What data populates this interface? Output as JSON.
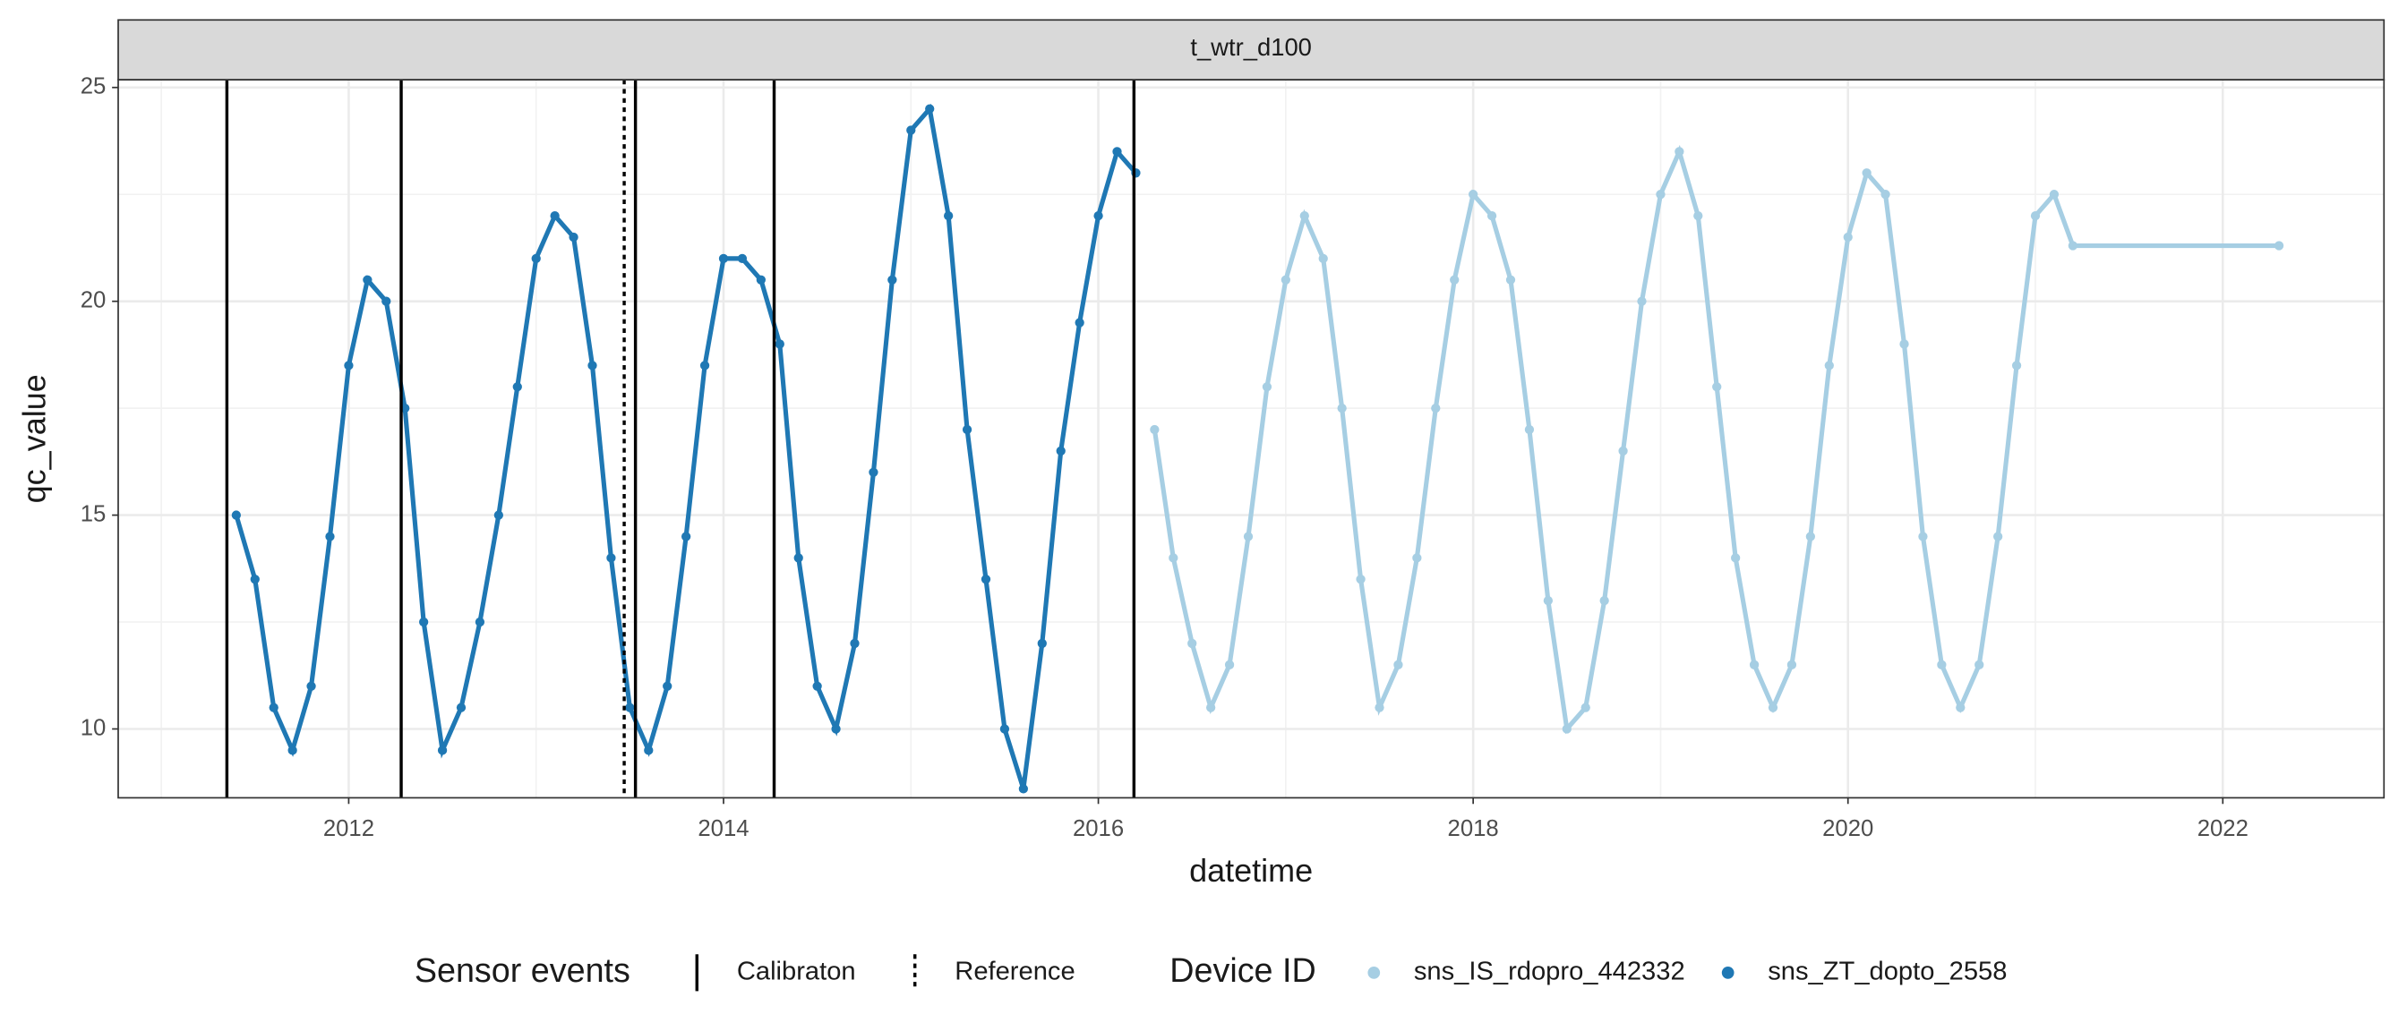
{
  "chart_data": {
    "type": "scatter",
    "strip_title": "t_wtr_d100",
    "x_label": "datetime",
    "y_label": "qc_value",
    "xlim": [
      2010.77,
      2022.86
    ],
    "ylim": [
      8.39,
      25.18
    ],
    "xticks": [
      2012,
      2014,
      2016,
      2018,
      2020,
      2022
    ],
    "yticks": [
      10,
      15,
      20,
      25
    ],
    "grid": true,
    "minor_grid": true,
    "legend_position": "bottom",
    "series": [
      {
        "name": "sns_IS_rdopro_442332",
        "color": "#a6cee3",
        "x": [
          2016.3,
          2016.4,
          2016.5,
          2016.6,
          2016.7,
          2016.8,
          2016.9,
          2017.0,
          2017.1,
          2017.2,
          2017.3,
          2017.4,
          2017.5,
          2017.6,
          2017.7,
          2017.8,
          2017.9,
          2018.0,
          2018.1,
          2018.2,
          2018.3,
          2018.4,
          2018.5,
          2018.6,
          2018.7,
          2018.8,
          2018.9,
          2019.0,
          2019.1,
          2019.2,
          2019.3,
          2019.4,
          2019.5,
          2019.6,
          2019.7,
          2019.8,
          2019.9,
          2020.0,
          2020.1,
          2020.2,
          2020.3,
          2020.4,
          2020.5,
          2020.6,
          2020.7,
          2020.8,
          2020.9,
          2021.0,
          2021.1,
          2021.2,
          2022.3
        ],
        "values": [
          17.0,
          14.0,
          12.0,
          10.5,
          11.5,
          14.5,
          18.0,
          20.5,
          22.0,
          21.0,
          17.5,
          13.5,
          10.5,
          11.5,
          14.0,
          17.5,
          20.5,
          22.5,
          22.0,
          20.5,
          17.0,
          13.0,
          10.0,
          10.5,
          13.0,
          16.5,
          20.0,
          22.5,
          23.5,
          22.0,
          18.0,
          14.0,
          11.5,
          10.5,
          11.5,
          14.5,
          18.5,
          21.5,
          23.0,
          22.5,
          19.0,
          14.5,
          11.5,
          10.5,
          11.5,
          14.5,
          18.5,
          22.0,
          22.5,
          21.3,
          21.3
        ]
      },
      {
        "name": "sns_ZT_dopto_2558",
        "color": "#1f78b4",
        "x": [
          2011.4,
          2011.5,
          2011.6,
          2011.7,
          2011.8,
          2011.9,
          2012.0,
          2012.1,
          2012.2,
          2012.3,
          2012.4,
          2012.5,
          2012.6,
          2012.7,
          2012.8,
          2012.9,
          2013.0,
          2013.1,
          2013.2,
          2013.3,
          2013.4,
          2013.5,
          2013.6,
          2013.7,
          2013.8,
          2013.9,
          2014.0,
          2014.1,
          2014.2,
          2014.3,
          2014.4,
          2014.5,
          2014.6,
          2014.7,
          2014.8,
          2014.9,
          2015.0,
          2015.1,
          2015.2,
          2015.3,
          2015.4,
          2015.5,
          2015.6,
          2015.7,
          2015.8,
          2015.9,
          2016.0,
          2016.1,
          2016.2
        ],
        "values": [
          15.0,
          13.5,
          10.5,
          9.5,
          11.0,
          14.5,
          18.5,
          20.5,
          20.0,
          17.5,
          12.5,
          9.5,
          10.5,
          12.5,
          15.0,
          18.0,
          21.0,
          22.0,
          21.5,
          18.5,
          14.0,
          10.5,
          9.5,
          11.0,
          14.5,
          18.5,
          21.0,
          21.0,
          20.5,
          19.0,
          14.0,
          11.0,
          10.0,
          12.0,
          16.0,
          20.5,
          24.0,
          24.5,
          22.0,
          17.0,
          13.5,
          10.0,
          8.6,
          12.0,
          16.5,
          19.5,
          22.0,
          23.5,
          23.0
        ]
      }
    ],
    "sensor_events": {
      "title": "Sensor events",
      "kinds": [
        {
          "name": "Calibraton",
          "dash": "solid"
        },
        {
          "name": "Reference",
          "dash": "dotted"
        }
      ],
      "calibration_x": [
        2011.35,
        2012.28,
        2013.53,
        2014.27,
        2016.19
      ],
      "reference_x": [
        2013.47
      ]
    },
    "device_legend_title": "Device ID"
  }
}
